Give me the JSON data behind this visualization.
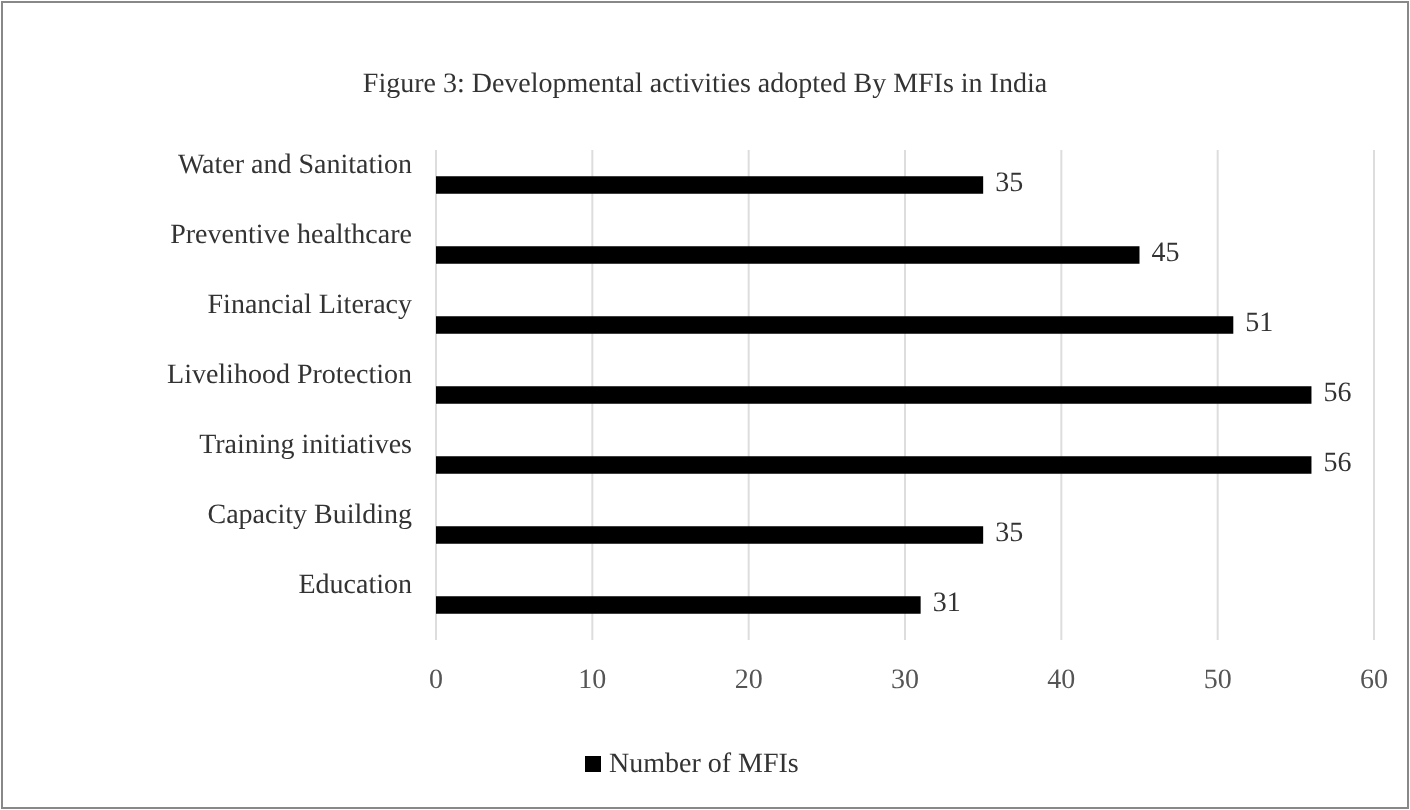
{
  "chart_data": {
    "type": "bar",
    "orientation": "horizontal",
    "title": "Figure 3: Developmental activities adopted By MFIs in India",
    "categories": [
      "Water and Sanitation",
      "Preventive healthcare",
      "Financial Literacy",
      "Livelihood Protection",
      "Training initiatives",
      "Capacity Building",
      "Education"
    ],
    "series": [
      {
        "name": "Number of MFIs",
        "color": "#000000",
        "values": [
          35,
          45,
          51,
          56,
          56,
          35,
          31
        ]
      }
    ],
    "xlim": [
      0,
      60
    ],
    "xticks": [
      0,
      10,
      20,
      30,
      40,
      50,
      60
    ],
    "grid": "x",
    "data_labels": true,
    "legend": "bottom"
  }
}
